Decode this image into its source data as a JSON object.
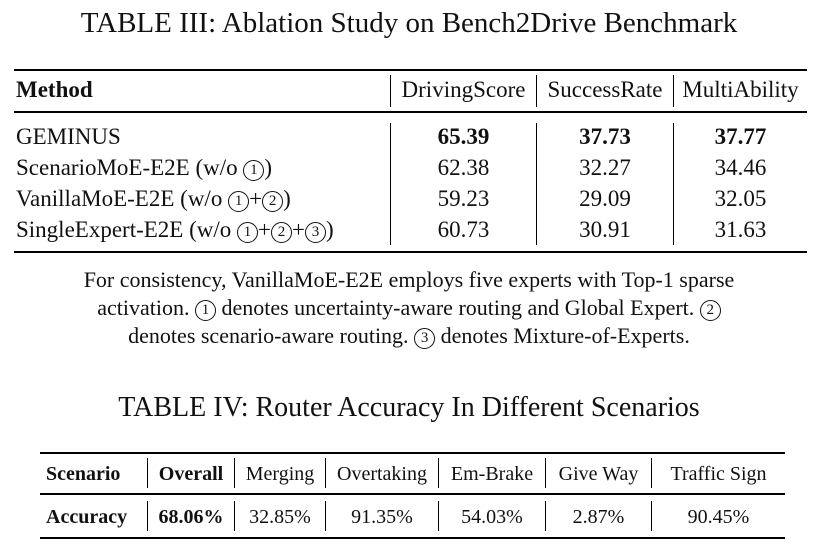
{
  "table3": {
    "caption": "TABLE III: Ablation Study on Bench2Drive Benchmark",
    "headers": [
      "Method",
      "DrivingScore",
      "SuccessRate",
      "MultiAbility"
    ],
    "rows": [
      {
        "method": "GEMINUS",
        "driving": "65.39",
        "success": "37.73",
        "multi": "37.77"
      },
      {
        "method_prefix": "ScenarioMoE-E2E (w/o ",
        "c1": "1",
        "method_suffix": ")",
        "driving": "62.38",
        "success": "32.27",
        "multi": "34.46"
      },
      {
        "method_prefix": "VanillaMoE-E2E (w/o ",
        "c1": "1",
        "plus1": "+",
        "c2": "2",
        "method_suffix": ")",
        "driving": "59.23",
        "success": "29.09",
        "multi": "32.05"
      },
      {
        "method_prefix": "SingleExpert-E2E (w/o ",
        "c1": "1",
        "plus1": "+",
        "c2": "2",
        "plus2": "+",
        "c3": "3",
        "method_suffix": ")",
        "driving": "60.73",
        "success": "30.91",
        "multi": "31.63"
      }
    ],
    "note": {
      "line1": "For consistency, VanillaMoE-E2E employs five experts with Top-1 sparse",
      "line2_a": "activation.",
      "line2_c1": "1",
      "line2_b": "denotes uncertainty-aware routing and Global Expert.",
      "line2_c2": "2",
      "line3_a": "denotes scenario-aware routing.",
      "line3_c3": "3",
      "line3_b": "denotes Mixture-of-Experts."
    }
  },
  "table4": {
    "caption": "TABLE IV: Router Accuracy In Different Scenarios",
    "headers": [
      "Scenario",
      "Overall",
      "Merging",
      "Overtaking",
      "Em-Brake",
      "Give Way",
      "Traffic Sign"
    ],
    "row": [
      "Accuracy",
      "68.06%",
      "32.85%",
      "91.35%",
      "54.03%",
      "2.87%",
      "90.45%"
    ]
  }
}
